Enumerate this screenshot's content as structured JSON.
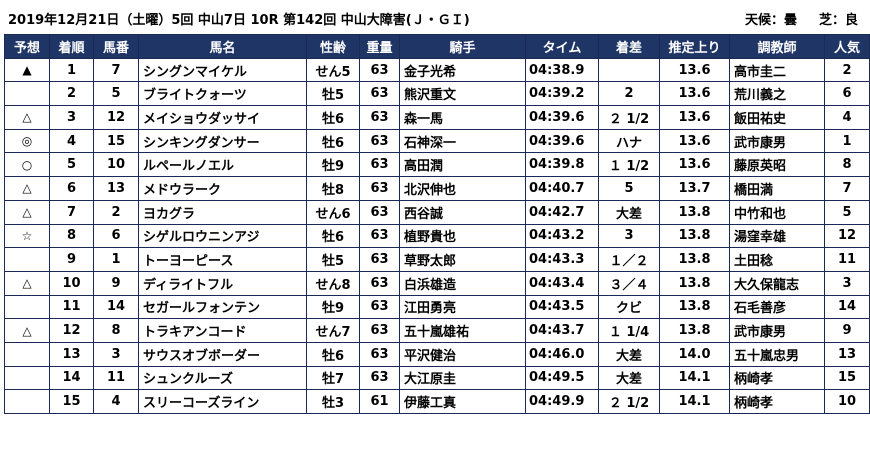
{
  "header": {
    "title": "2019年12月21日（土曜）5回 中山7日 10R 第142回 中山大障害(Ｊ・ＧＩ)",
    "weather": "天候：曇",
    "track": "芝：良"
  },
  "columns": [
    "予想",
    "着順",
    "馬番",
    "馬名",
    "性齢",
    "重量",
    "騎手",
    "タイム",
    "着差",
    "推定上り",
    "調教師",
    "人気"
  ],
  "rows": [
    {
      "mark": "▲",
      "rank": "1",
      "num": "7",
      "name": "シングンマイケル",
      "sexage": "せん5",
      "weight": "63",
      "jockey": "金子光希",
      "time": "04:38.9",
      "margin": "",
      "last3f": "13.6",
      "trainer": "高市圭二",
      "pop": "2"
    },
    {
      "mark": "",
      "rank": "2",
      "num": "5",
      "name": "ブライトクォーツ",
      "sexage": "牡5",
      "weight": "63",
      "jockey": "熊沢重文",
      "time": "04:39.2",
      "margin": "2",
      "last3f": "13.6",
      "trainer": "荒川義之",
      "pop": "6"
    },
    {
      "mark": "△",
      "rank": "3",
      "num": "12",
      "name": "メイショウダッサイ",
      "sexage": "牡6",
      "weight": "63",
      "jockey": "森一馬",
      "time": "04:39.6",
      "margin": "２ 1/2",
      "last3f": "13.6",
      "trainer": "飯田祐史",
      "pop": "4"
    },
    {
      "mark": "◎",
      "rank": "4",
      "num": "15",
      "name": "シンキングダンサー",
      "sexage": "牡6",
      "weight": "63",
      "jockey": "石神深一",
      "time": "04:39.6",
      "margin": "ハナ",
      "last3f": "13.6",
      "trainer": "武市康男",
      "pop": "1"
    },
    {
      "mark": "○",
      "rank": "5",
      "num": "10",
      "name": "ルペールノエル",
      "sexage": "牡9",
      "weight": "63",
      "jockey": "高田潤",
      "time": "04:39.8",
      "margin": "１ 1/2",
      "last3f": "13.6",
      "trainer": "藤原英昭",
      "pop": "8"
    },
    {
      "mark": "△",
      "rank": "6",
      "num": "13",
      "name": "メドウラーク",
      "sexage": "牡8",
      "weight": "63",
      "jockey": "北沢伸也",
      "time": "04:40.7",
      "margin": "5",
      "last3f": "13.7",
      "trainer": "橋田満",
      "pop": "7"
    },
    {
      "mark": "△",
      "rank": "7",
      "num": "2",
      "name": "ヨカグラ",
      "sexage": "せん6",
      "weight": "63",
      "jockey": "西谷誠",
      "time": "04:42.7",
      "margin": "大差",
      "last3f": "13.8",
      "trainer": "中竹和也",
      "pop": "5"
    },
    {
      "mark": "☆",
      "rank": "8",
      "num": "6",
      "name": "シゲルロウニンアジ",
      "sexage": "牡6",
      "weight": "63",
      "jockey": "植野貴也",
      "time": "04:43.2",
      "margin": "3",
      "last3f": "13.8",
      "trainer": "湯窪幸雄",
      "pop": "12"
    },
    {
      "mark": "",
      "rank": "9",
      "num": "1",
      "name": "トーヨーピース",
      "sexage": "牡5",
      "weight": "63",
      "jockey": "草野太郎",
      "time": "04:43.3",
      "margin": "１／２",
      "last3f": "13.8",
      "trainer": "土田稔",
      "pop": "11"
    },
    {
      "mark": "△",
      "rank": "10",
      "num": "9",
      "name": "ディライトフル",
      "sexage": "せん8",
      "weight": "63",
      "jockey": "白浜雄造",
      "time": "04:43.4",
      "margin": "３／４",
      "last3f": "13.8",
      "trainer": "大久保龍志",
      "pop": "3"
    },
    {
      "mark": "",
      "rank": "11",
      "num": "14",
      "name": "セガールフォンテン",
      "sexage": "牡9",
      "weight": "63",
      "jockey": "江田勇亮",
      "time": "04:43.5",
      "margin": "クビ",
      "last3f": "13.8",
      "trainer": "石毛善彦",
      "pop": "14"
    },
    {
      "mark": "△",
      "rank": "12",
      "num": "8",
      "name": "トラキアンコード",
      "sexage": "せん7",
      "weight": "63",
      "jockey": "五十嵐雄祐",
      "time": "04:43.7",
      "margin": "１ 1/4",
      "last3f": "13.8",
      "trainer": "武市康男",
      "pop": "9"
    },
    {
      "mark": "",
      "rank": "13",
      "num": "3",
      "name": "サウスオブボーダー",
      "sexage": "牡6",
      "weight": "63",
      "jockey": "平沢健治",
      "time": "04:46.0",
      "margin": "大差",
      "last3f": "14.0",
      "trainer": "五十嵐忠男",
      "pop": "13"
    },
    {
      "mark": "",
      "rank": "14",
      "num": "11",
      "name": "シュンクルーズ",
      "sexage": "牡7",
      "weight": "63",
      "jockey": "大江原圭",
      "time": "04:49.5",
      "margin": "大差",
      "last3f": "14.1",
      "trainer": "柄崎孝",
      "pop": "15"
    },
    {
      "mark": "",
      "rank": "15",
      "num": "4",
      "name": "スリーコーズライン",
      "sexage": "牡3",
      "weight": "61",
      "jockey": "伊藤工真",
      "time": "04:49.9",
      "margin": "２ 1/2",
      "last3f": "14.1",
      "trainer": "柄崎孝",
      "pop": "10"
    }
  ]
}
